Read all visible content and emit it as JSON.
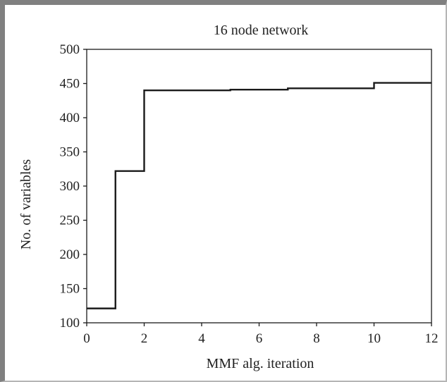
{
  "chart_data": {
    "type": "line",
    "step": true,
    "title": "16 node network",
    "xlabel": "MMF alg. iteration",
    "ylabel": "No. of variables",
    "xlim": [
      0,
      12
    ],
    "ylim": [
      100,
      500
    ],
    "xticks": [
      0,
      2,
      4,
      6,
      8,
      10,
      12
    ],
    "yticks": [
      100,
      150,
      200,
      250,
      300,
      350,
      400,
      450,
      500
    ],
    "grid": false,
    "legend": "none",
    "line_color": "#1a1a1a",
    "series": [
      {
        "x": [
          0,
          1,
          1,
          2,
          2,
          5,
          5,
          7,
          7,
          10,
          10,
          12
        ],
        "values": [
          121,
          121,
          322,
          322,
          440,
          440,
          441,
          441,
          443,
          443,
          451,
          451
        ]
      }
    ]
  }
}
